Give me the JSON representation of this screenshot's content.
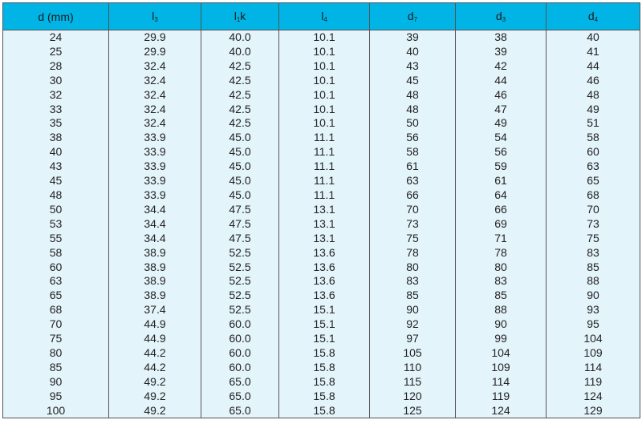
{
  "table": {
    "headers": [
      {
        "main": "d (mm)",
        "sub": "",
        "suffix": ""
      },
      {
        "main": "l",
        "sub": "3",
        "suffix": ""
      },
      {
        "main": "l",
        "sub": "1",
        "suffix": "k"
      },
      {
        "main": "l",
        "sub": "4",
        "suffix": ""
      },
      {
        "main": "d",
        "sub": "7",
        "suffix": ""
      },
      {
        "main": "d",
        "sub": "3",
        "suffix": ""
      },
      {
        "main": "d",
        "sub": "4",
        "suffix": ""
      }
    ],
    "rows": [
      [
        "24",
        "29.9",
        "40.0",
        "10.1",
        "39",
        "38",
        "40"
      ],
      [
        "25",
        "29.9",
        "40.0",
        "10.1",
        "40",
        "39",
        "41"
      ],
      [
        "28",
        "32.4",
        "42.5",
        "10.1",
        "43",
        "42",
        "44"
      ],
      [
        "30",
        "32.4",
        "42.5",
        "10.1",
        "45",
        "44",
        "46"
      ],
      [
        "32",
        "32.4",
        "42.5",
        "10.1",
        "48",
        "46",
        "48"
      ],
      [
        "33",
        "32.4",
        "42.5",
        "10.1",
        "48",
        "47",
        "49"
      ],
      [
        "35",
        "32.4",
        "42.5",
        "10.1",
        "50",
        "49",
        "51"
      ],
      [
        "38",
        "33.9",
        "45.0",
        "11.1",
        "56",
        "54",
        "58"
      ],
      [
        "40",
        "33.9",
        "45.0",
        "11.1",
        "58",
        "56",
        "60"
      ],
      [
        "43",
        "33.9",
        "45.0",
        "11.1",
        "61",
        "59",
        "63"
      ],
      [
        "45",
        "33.9",
        "45.0",
        "11.1",
        "63",
        "61",
        "65"
      ],
      [
        "48",
        "33.9",
        "45.0",
        "11.1",
        "66",
        "64",
        "68"
      ],
      [
        "50",
        "34.4",
        "47.5",
        "13.1",
        "70",
        "66",
        "70"
      ],
      [
        "53",
        "34.4",
        "47.5",
        "13.1",
        "73",
        "69",
        "73"
      ],
      [
        "55",
        "34.4",
        "47.5",
        "13.1",
        "75",
        "71",
        "75"
      ],
      [
        "58",
        "38.9",
        "52.5",
        "13.6",
        "78",
        "78",
        "83"
      ],
      [
        "60",
        "38.9",
        "52.5",
        "13.6",
        "80",
        "80",
        "85"
      ],
      [
        "63",
        "38.9",
        "52.5",
        "13.6",
        "83",
        "83",
        "88"
      ],
      [
        "65",
        "38.9",
        "52.5",
        "13.6",
        "85",
        "85",
        "90"
      ],
      [
        "68",
        "37.4",
        "52.5",
        "15.1",
        "90",
        "88",
        "93"
      ],
      [
        "70",
        "44.9",
        "60.0",
        "15.1",
        "92",
        "90",
        "95"
      ],
      [
        "75",
        "44.9",
        "60.0",
        "15.1",
        "97",
        "99",
        "104"
      ],
      [
        "80",
        "44.2",
        "60.0",
        "15.8",
        "105",
        "104",
        "109"
      ],
      [
        "85",
        "44.2",
        "60.0",
        "15.8",
        "110",
        "109",
        "114"
      ],
      [
        "90",
        "49.2",
        "65.0",
        "15.8",
        "115",
        "114",
        "119"
      ],
      [
        "95",
        "49.2",
        "65.0",
        "15.8",
        "120",
        "119",
        "124"
      ],
      [
        "100",
        "49.2",
        "65.0",
        "15.8",
        "125",
        "124",
        "129"
      ]
    ]
  },
  "colors": {
    "header": "#00b4e6",
    "body": "#e4f4fb",
    "border": "#555555"
  }
}
